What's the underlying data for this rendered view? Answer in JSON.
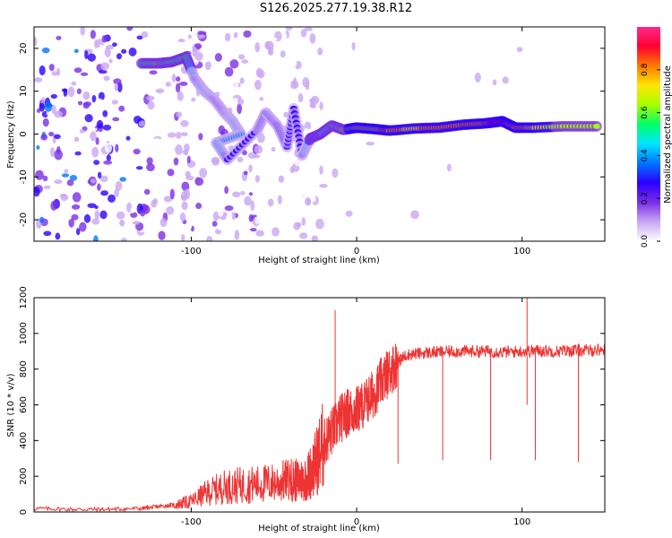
{
  "figure_title": "S126.2025.277.19.38.R12",
  "chart_data": [
    {
      "type": "heatmap",
      "title": "",
      "xlabel": "Height of straight line (km)",
      "ylabel": "Frequency (Hz)",
      "xlim": [
        -195,
        150
      ],
      "ylim": [
        -25,
        25
      ],
      "x_ticks": [
        -100,
        0,
        100
      ],
      "y_ticks": [
        -20,
        -10,
        0,
        10,
        20
      ],
      "colorbar": {
        "label": "Normalized spectral amplitude",
        "range": [
          0,
          1
        ],
        "ticks": [
          0.0,
          0.2,
          0.4,
          0.6,
          0.8
        ],
        "colors": [
          "#ffffff",
          "#c9a6f2",
          "#7a2ee6",
          "#2b00ff",
          "#0074ff",
          "#00e5ff",
          "#00ff66",
          "#a6ff00",
          "#ffe600",
          "#ff7a00",
          "#ff0033",
          "#ff2a8a"
        ]
      },
      "ridge": [
        {
          "x": -130,
          "y": 16.5,
          "a": 0.55
        },
        {
          "x": -120,
          "y": 16.5,
          "a": 0.6
        },
        {
          "x": -112,
          "y": 16.8,
          "a": 0.5
        },
        {
          "x": -103,
          "y": 18,
          "a": 0.55
        },
        {
          "x": -98,
          "y": 13,
          "a": 0.3
        },
        {
          "x": -92,
          "y": 10,
          "a": 0.35
        },
        {
          "x": -86,
          "y": 8,
          "a": 0.3
        },
        {
          "x": -80,
          "y": 5,
          "a": 0.3
        },
        {
          "x": -75,
          "y": 3,
          "a": 0.35
        },
        {
          "x": -70,
          "y": 0,
          "a": 0.35
        },
        {
          "x": -85,
          "y": -2,
          "a": 0.35
        },
        {
          "x": -78,
          "y": -6,
          "a": 0.3
        },
        {
          "x": -60,
          "y": 1,
          "a": 0.25
        },
        {
          "x": -55,
          "y": 5,
          "a": 0.3
        },
        {
          "x": -48,
          "y": 2,
          "a": 0.3
        },
        {
          "x": -42,
          "y": -3,
          "a": 0.3
        },
        {
          "x": -38,
          "y": 6,
          "a": 0.3
        },
        {
          "x": -33,
          "y": -5,
          "a": 0.3
        },
        {
          "x": -28,
          "y": -1,
          "a": 0.4
        },
        {
          "x": -22,
          "y": 0,
          "a": 0.4
        },
        {
          "x": -15,
          "y": 2,
          "a": 0.55
        },
        {
          "x": -8,
          "y": 1,
          "a": 0.6
        },
        {
          "x": 0,
          "y": 1.5,
          "a": 0.75
        },
        {
          "x": 10,
          "y": 1.2,
          "a": 0.75
        },
        {
          "x": 20,
          "y": 0.8,
          "a": 0.8
        },
        {
          "x": 35,
          "y": 1.3,
          "a": 0.75
        },
        {
          "x": 50,
          "y": 1.5,
          "a": 0.85
        },
        {
          "x": 65,
          "y": 2.2,
          "a": 0.8
        },
        {
          "x": 78,
          "y": 2.5,
          "a": 0.85
        },
        {
          "x": 88,
          "y": 3,
          "a": 0.9
        },
        {
          "x": 96,
          "y": 1.5,
          "a": 0.8
        },
        {
          "x": 108,
          "y": 1.5,
          "a": 0.75
        },
        {
          "x": 125,
          "y": 1.8,
          "a": 0.6
        },
        {
          "x": 145,
          "y": 1.8,
          "a": 0.6
        }
      ]
    },
    {
      "type": "line",
      "title": "",
      "xlabel": "Height of straight line (km)",
      "ylabel": "SNR (10 * v/v)",
      "xlim": [
        -195,
        150
      ],
      "ylim": [
        0,
        1200
      ],
      "x_ticks": [
        -100,
        0,
        100
      ],
      "y_ticks": [
        0,
        200,
        400,
        600,
        800,
        1000,
        1200
      ],
      "series": [
        {
          "name": "SNR",
          "color": "#ee3333",
          "x": [
            -195,
            -170,
            -150,
            -130,
            -120,
            -110,
            -100,
            -90,
            -80,
            -70,
            -60,
            -50,
            -40,
            -35,
            -30,
            -25,
            -20,
            -15,
            -10,
            -5,
            0,
            5,
            10,
            15,
            20,
            25,
            30,
            40,
            50,
            60,
            70,
            80,
            90,
            100,
            110,
            120,
            130,
            140,
            150
          ],
          "y": [
            20,
            15,
            15,
            20,
            30,
            40,
            60,
            110,
            140,
            150,
            155,
            165,
            180,
            175,
            190,
            270,
            380,
            450,
            520,
            560,
            570,
            610,
            660,
            730,
            790,
            840,
            880,
            890,
            895,
            900,
            900,
            900,
            895,
            900,
            905,
            900,
            905,
            905,
            910
          ]
        }
      ],
      "spikes": [
        {
          "x": -13,
          "y": 1130
        },
        {
          "x": 25,
          "y": 270
        },
        {
          "x": 52,
          "y": 290
        },
        {
          "x": 81,
          "y": 290
        },
        {
          "x": 103,
          "y": 1200
        },
        {
          "x": 108,
          "y": 290
        },
        {
          "x": 134,
          "y": 280
        }
      ]
    }
  ]
}
